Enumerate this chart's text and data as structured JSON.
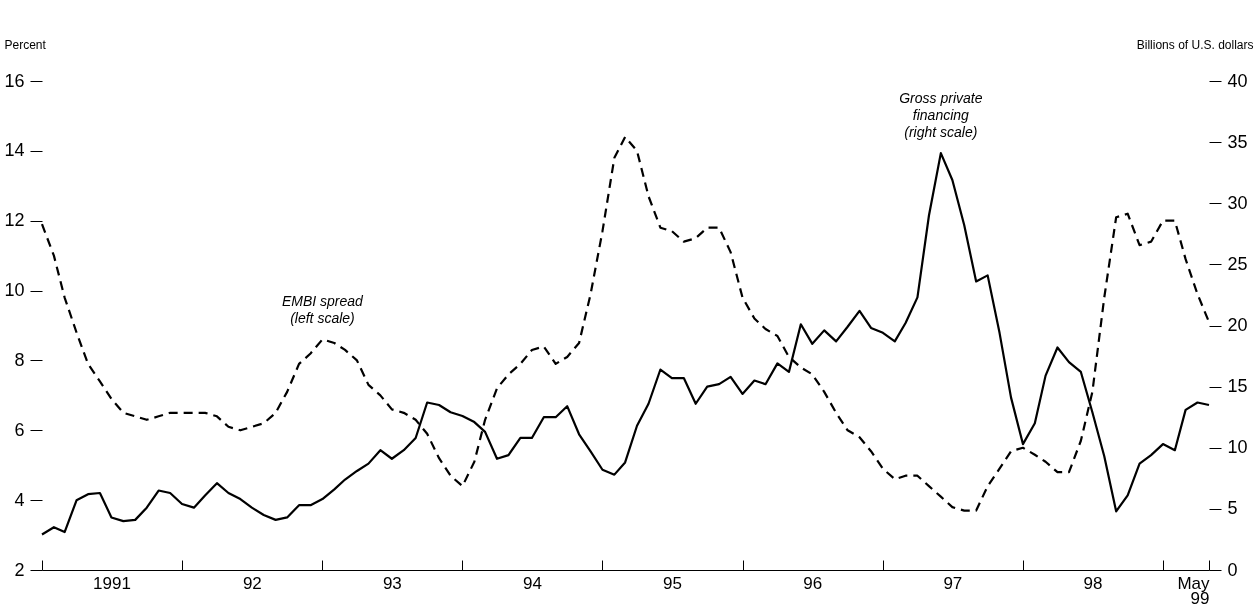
{
  "chart_data": {
    "type": "line",
    "ylabel": "Percent",
    "y2label": "Billions of U.S. dollars",
    "x": [
      "1991-01",
      "1991-02",
      "1991-03",
      "1991-04",
      "1991-05",
      "1991-06",
      "1991-07",
      "1991-08",
      "1991-09",
      "1991-10",
      "1991-11",
      "1991-12",
      "1992-01",
      "1992-02",
      "1992-03",
      "1992-04",
      "1992-05",
      "1992-06",
      "1992-07",
      "1992-08",
      "1992-09",
      "1992-10",
      "1992-11",
      "1992-12",
      "1993-01",
      "1993-02",
      "1993-03",
      "1993-04",
      "1993-05",
      "1993-06",
      "1993-07",
      "1993-08",
      "1993-09",
      "1993-10",
      "1993-11",
      "1993-12",
      "1994-01",
      "1994-02",
      "1994-03",
      "1994-04",
      "1994-05",
      "1994-06",
      "1994-07",
      "1994-08",
      "1994-09",
      "1994-10",
      "1994-11",
      "1994-12",
      "1995-01",
      "1995-02",
      "1995-03",
      "1995-04",
      "1995-05",
      "1995-06",
      "1995-07",
      "1995-08",
      "1995-09",
      "1995-10",
      "1995-11",
      "1995-12",
      "1996-01",
      "1996-02",
      "1996-03",
      "1996-04",
      "1996-05",
      "1996-06",
      "1996-07",
      "1996-08",
      "1996-09",
      "1996-10",
      "1996-11",
      "1996-12",
      "1997-01",
      "1997-02",
      "1997-03",
      "1997-04",
      "1997-05",
      "1997-06",
      "1997-07",
      "1997-08",
      "1997-09",
      "1997-10",
      "1997-11",
      "1997-12",
      "1998-01",
      "1998-02",
      "1998-03",
      "1998-04",
      "1998-05",
      "1998-06",
      "1998-07",
      "1998-08",
      "1998-09",
      "1998-10",
      "1998-11",
      "1998-12",
      "1999-01",
      "1999-02",
      "1999-03",
      "1999-04",
      "1999-05"
    ],
    "series": [
      {
        "color": "#000000",
        "line_style": "dashed",
        "values": [
          11.9,
          11.0,
          9.8,
          8.8,
          7.9,
          7.4,
          6.9,
          6.5,
          6.4,
          6.3,
          6.4,
          6.5,
          6.5,
          6.5,
          6.5,
          6.4,
          6.1,
          6.0,
          6.1,
          6.2,
          6.5,
          7.1,
          7.9,
          8.2,
          8.6,
          8.5,
          8.3,
          8.0,
          7.3,
          7.0,
          6.6,
          6.5,
          6.3,
          5.9,
          5.2,
          4.7,
          4.4,
          5.1,
          6.3,
          7.2,
          7.6,
          7.9,
          8.3,
          8.4,
          7.9,
          8.1,
          8.5,
          9.9,
          11.7,
          13.8,
          14.4,
          14.0,
          12.7,
          11.8,
          11.7,
          11.4,
          11.5,
          11.8,
          11.8,
          11.1,
          9.8,
          9.2,
          8.9,
          8.7,
          8.1,
          7.8,
          7.6,
          7.1,
          6.5,
          6.0,
          5.8,
          5.4,
          4.9,
          4.6,
          4.7,
          4.7,
          4.4,
          4.1,
          3.8,
          3.7,
          3.7,
          4.4,
          4.9,
          5.4,
          5.5,
          5.3,
          5.1,
          4.8,
          4.8,
          5.7,
          7.1,
          9.8,
          12.1,
          12.2,
          11.3,
          11.4,
          12.0,
          12.0,
          10.9,
          9.9,
          9.1
        ]
      },
      {
        "color": "#000000",
        "line_style": "solid",
        "axis": "y2",
        "values": [
          2.9,
          3.5,
          3.1,
          5.7,
          6.2,
          6.3,
          4.3,
          4.0,
          4.1,
          5.1,
          6.5,
          6.3,
          5.4,
          5.1,
          6.1,
          7.1,
          6.3,
          5.8,
          5.1,
          4.5,
          4.1,
          4.3,
          5.3,
          5.3,
          5.8,
          6.6,
          7.4,
          8.1,
          8.7,
          9.8,
          9.1,
          9.8,
          10.8,
          13.7,
          13.5,
          12.9,
          12.6,
          12.1,
          11.3,
          9.1,
          9.4,
          10.8,
          10.8,
          12.5,
          12.5,
          13.4,
          11.1,
          9.7,
          8.2,
          7.8,
          8.8,
          11.8,
          13.6,
          16.4,
          15.7,
          15.7,
          13.6,
          15.0,
          15.2,
          15.8,
          14.4,
          15.5,
          15.2,
          16.9,
          16.2,
          20.1,
          18.5,
          19.6,
          18.7,
          19.9,
          21.2,
          19.8,
          19.4,
          18.7,
          20.2,
          22.3,
          29.0,
          34.1,
          31.9,
          28.2,
          23.6,
          24.1,
          19.4,
          14.1,
          10.3,
          12.0,
          15.9,
          18.2,
          17.0,
          16.2,
          12.9,
          9.3,
          4.8,
          6.1,
          8.7,
          9.4,
          10.3,
          9.8,
          13.1,
          13.7,
          13.5
        ]
      }
    ],
    "xlim": [
      "1991-01",
      "1999-05"
    ],
    "xticks": [
      {
        "value": "1991-01",
        "label": null
      },
      {
        "value": "1992-01",
        "label": null
      },
      {
        "value": "1993-01",
        "label": null
      },
      {
        "value": "1994-01",
        "label": null
      },
      {
        "value": "1995-01",
        "label": null
      },
      {
        "value": "1996-01",
        "label": null
      },
      {
        "value": "1997-01",
        "label": null
      },
      {
        "value": "1998-01",
        "label": null
      },
      {
        "value": "1999-01",
        "label": null
      },
      {
        "value": "1991-07",
        "label": "1991"
      },
      {
        "value": "1992-07",
        "label": "92"
      },
      {
        "value": "1993-07",
        "label": "93"
      },
      {
        "value": "1994-07",
        "label": "94"
      },
      {
        "value": "1995-07",
        "label": "95"
      },
      {
        "value": "1996-07",
        "label": "96"
      },
      {
        "value": "1997-07",
        "label": "97"
      },
      {
        "value": "1998-07",
        "label": "98"
      },
      {
        "value": "1999-05",
        "label": "May 99"
      }
    ],
    "ylim": [
      2,
      16
    ],
    "yticks": [
      2,
      4,
      6,
      8,
      10,
      12,
      14,
      16
    ],
    "y2lim": [
      0,
      40
    ],
    "y2ticks": [
      0,
      5,
      10,
      15,
      20,
      25,
      30,
      35,
      40
    ],
    "grid": false,
    "marker": "none",
    "annotations": [
      {
        "text": "EMBI spread\n(left scale)",
        "x": "1993-01",
        "y": 8.6
      },
      "Gross private\nfinancing\n(right scale)"
    ]
  }
}
